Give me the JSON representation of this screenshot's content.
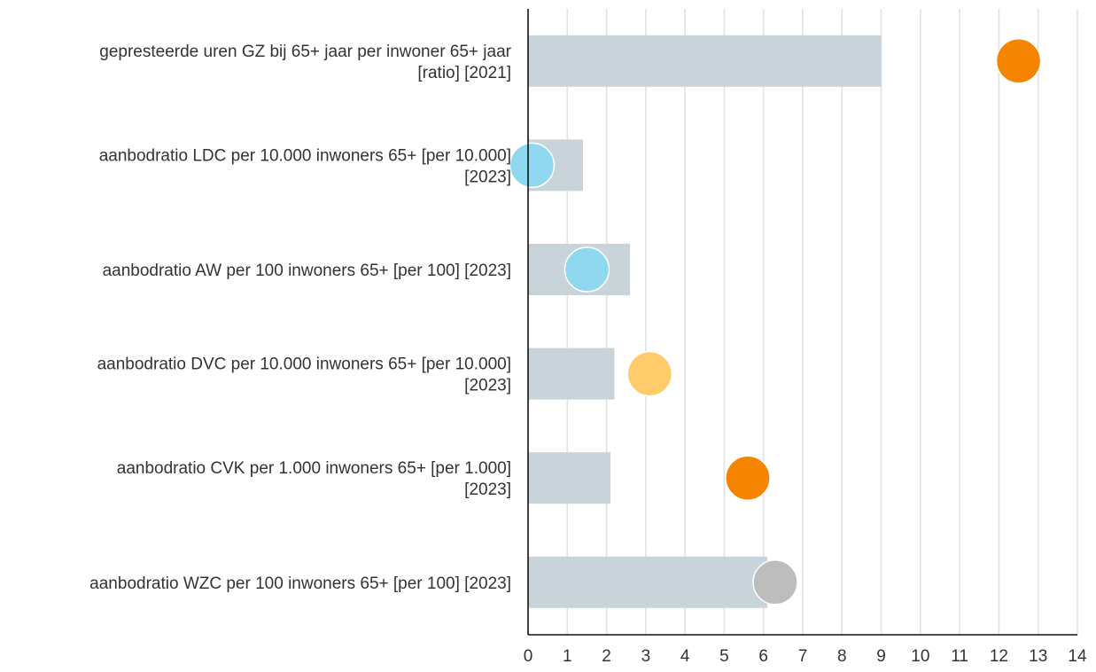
{
  "chart_data": {
    "type": "bar",
    "categories": [
      [
        "gepresteerde uren GZ bij 65+ jaar per inwoner 65+ jaar",
        "[ratio] [2021]"
      ],
      [
        "aanbodratio LDC per 10.000 inwoners 65+ [per 10.000]",
        "[2023]"
      ],
      [
        "aanbodratio AW per 100 inwoners 65+ [per 100] [2023]"
      ],
      [
        "aanbodratio DVC per 10.000 inwoners 65+ [per 10.000]",
        "[2023]"
      ],
      [
        "aanbodratio CVK per 1.000 inwoners 65+ [per 1.000]",
        "[2023]"
      ],
      [
        "aanbodratio WZC per 100 inwoners 65+ [per 100] [2023]"
      ]
    ],
    "series": [
      {
        "type": "bar",
        "values": [
          9.0,
          1.4,
          2.6,
          2.2,
          2.1,
          6.1
        ],
        "color": "#c8d4d9"
      },
      {
        "type": "point",
        "values": [
          12.5,
          0.1,
          1.5,
          3.1,
          5.6,
          6.3
        ],
        "colors": [
          "#f58500",
          "#8fd8ef",
          "#8fd8ef",
          "#ffcb6b",
          "#f58500",
          "#bdbdbd"
        ]
      }
    ],
    "xlim": [
      0,
      14
    ],
    "xticks": [
      "0",
      "1",
      "2",
      "3",
      "4",
      "5",
      "6",
      "7",
      "8",
      "9",
      "10",
      "11",
      "12",
      "13",
      "14"
    ],
    "grid": true,
    "legend": "none"
  }
}
